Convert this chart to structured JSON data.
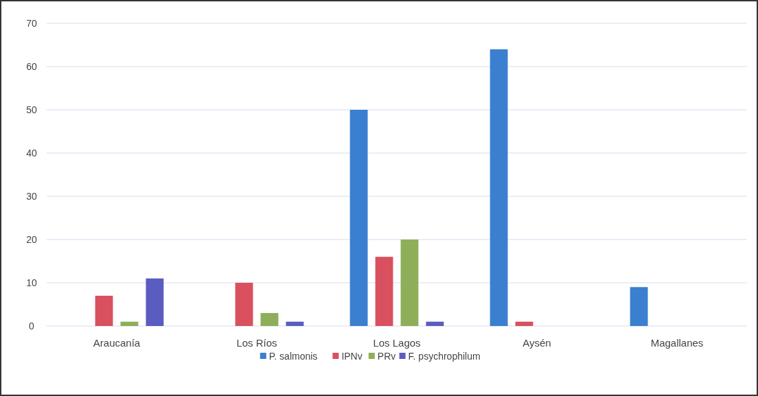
{
  "chart_data": {
    "type": "bar",
    "categories": [
      "Araucanía",
      "Los Ríos",
      "Los Lagos",
      "Aysén",
      "Magallanes"
    ],
    "series": [
      {
        "name": "P. salmonis",
        "color": "#3a7fd0",
        "values": [
          0,
          0,
          50,
          64,
          9
        ]
      },
      {
        "name": "IPNv",
        "color": "#d9505f",
        "values": [
          7,
          10,
          16,
          1,
          0
        ]
      },
      {
        "name": "PRv",
        "color": "#8fae5a",
        "values": [
          1,
          3,
          20,
          0,
          0
        ]
      },
      {
        "name": "F. psychrophilum",
        "color": "#5a5cc0",
        "values": [
          11,
          1,
          1,
          0,
          0
        ]
      }
    ],
    "ylim": [
      0,
      70
    ],
    "yticks": [
      0,
      10,
      20,
      30,
      40,
      50,
      60,
      70
    ],
    "grid": "y",
    "legend": "bottom"
  }
}
